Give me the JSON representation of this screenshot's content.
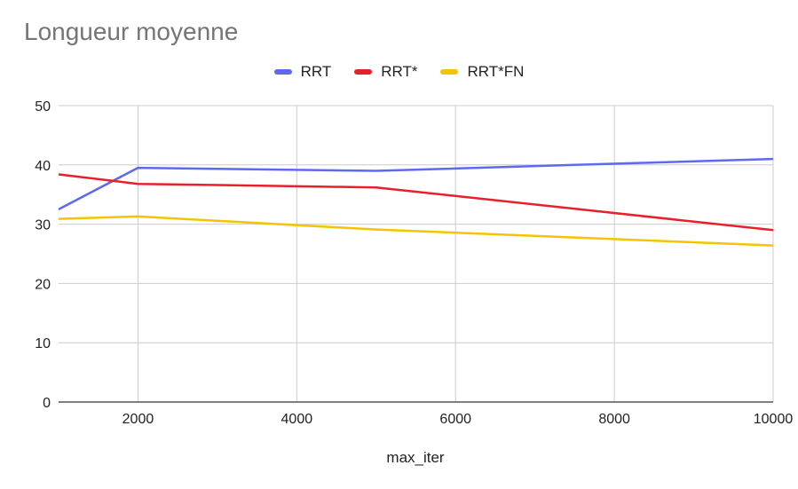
{
  "chart_data": {
    "type": "line",
    "title": "Longueur moyenne",
    "xlabel": "max_iter",
    "ylabel": "",
    "xlim": [
      1000,
      10000
    ],
    "ylim": [
      0,
      50
    ],
    "x_ticks": [
      2000,
      4000,
      6000,
      8000,
      10000
    ],
    "y_ticks": [
      0,
      10,
      20,
      30,
      40,
      50
    ],
    "grid": true,
    "legend_position": "top",
    "x": [
      1000,
      2000,
      5000,
      10000
    ],
    "series": [
      {
        "name": "RRT",
        "color": "#5c6af0",
        "x": [
          1000,
          2000,
          5000,
          10000
        ],
        "values": [
          32.5,
          39.5,
          39.0,
          41.0
        ]
      },
      {
        "name": "RRT*",
        "color": "#e8202a",
        "x": [
          1000,
          2000,
          5000,
          10000
        ],
        "values": [
          38.4,
          36.8,
          36.2,
          29.0
        ]
      },
      {
        "name": "RRT*FN",
        "color": "#f5c400",
        "x": [
          1000,
          2000,
          5000,
          10000
        ],
        "values": [
          30.9,
          31.3,
          29.1,
          26.4
        ]
      }
    ]
  }
}
